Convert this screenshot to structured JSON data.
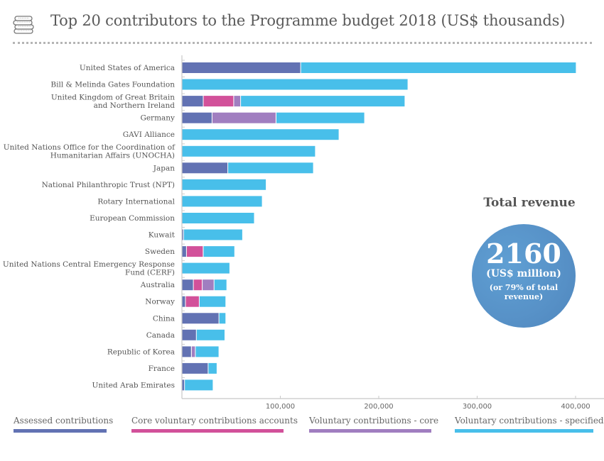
{
  "header": {
    "icon": "coins-stack-icon",
    "title": "Top 20 contributors to the Programme budget 2018 (US$ thousands)"
  },
  "revenue_panel": {
    "title": "Total revenue",
    "value": "2160",
    "unit": "(US$ million)",
    "note": "(or 79% of total revenue)"
  },
  "colors": {
    "assessed": "#6272b3",
    "core_voluntary_accounts": "#d2519a",
    "voluntary_core": "#a07ec0",
    "voluntary_specified": "#48bfea",
    "revenue_circle": "#5791c7"
  },
  "chart_data": {
    "type": "bar",
    "orientation": "horizontal",
    "stacked": true,
    "title": "Top 20 contributors to the Programme budget 2018 (US$ thousands)",
    "xlabel": "",
    "ylabel": "",
    "xlim": [
      0,
      420000
    ],
    "xticks": [
      100000,
      200000,
      300000,
      400000
    ],
    "xtick_labels": [
      "100,000",
      "200,000",
      "300,000",
      "400,000"
    ],
    "grid": false,
    "legend_position": "bottom",
    "categories": [
      "United States of America",
      "Bill & Melinda Gates Foundation",
      "United Kingdom of Great Britain and Northern Ireland",
      "Germany",
      "GAVI Alliance",
      "United Nations Office for the Coordination of Humanitarian Affairs (UNOCHA)",
      "Japan",
      "National Philanthropic Trust (NPT)",
      "Rotary International",
      "European Commission",
      "Kuwait",
      "Sweden",
      "United Nations Central Emergency Response Fund (CERF)",
      "Australia",
      "Norway",
      "China",
      "Canada",
      "Republic of Korea",
      "France",
      "United Arab Emirates"
    ],
    "category_label_lines": [
      [
        "United States of America"
      ],
      [
        "Bill & Melinda Gates Foundation"
      ],
      [
        "United Kingdom of Great Britain",
        "and Northern Ireland"
      ],
      [
        "Germany"
      ],
      [
        "GAVI Alliance"
      ],
      [
        "United Nations Office for the Coordination of",
        "Humanitarian Affairs (UNOCHA)"
      ],
      [
        "Japan"
      ],
      [
        "National Philanthropic Trust (NPT)"
      ],
      [
        "Rotary International"
      ],
      [
        "European Commission"
      ],
      [
        "Kuwait"
      ],
      [
        "Sweden"
      ],
      [
        "United Nations Central Emergency Response",
        "Fund (CERF)"
      ],
      [
        "Australia"
      ],
      [
        "Norway"
      ],
      [
        "China"
      ],
      [
        "Canada"
      ],
      [
        "Republic of Korea"
      ],
      [
        "France"
      ],
      [
        "United Arab Emirates"
      ]
    ],
    "series": [
      {
        "name": "Assessed contributions",
        "key": "assessed",
        "values": [
          121000,
          0,
          22000,
          31000,
          0,
          0,
          47000,
          0,
          0,
          0,
          2000,
          5000,
          0,
          12000,
          4000,
          38000,
          15000,
          10000,
          27000,
          3000
        ]
      },
      {
        "name": "Core voluntary contributions accounts",
        "key": "core_voluntary_accounts",
        "values": [
          0,
          0,
          31000,
          0,
          0,
          0,
          0,
          0,
          0,
          0,
          0,
          17000,
          0,
          9000,
          14000,
          0,
          0,
          0,
          0,
          0
        ]
      },
      {
        "name": "Voluntary contributions - core",
        "key": "voluntary_core",
        "values": [
          0,
          0,
          7000,
          65000,
          0,
          0,
          0,
          0,
          0,
          0,
          0,
          0,
          0,
          12000,
          0,
          0,
          0,
          4000,
          0,
          0
        ]
      },
      {
        "name": "Voluntary contributions - specified",
        "key": "voluntary_specified",
        "values": [
          280000,
          230000,
          167000,
          90000,
          160000,
          136000,
          87000,
          86000,
          82000,
          74000,
          60000,
          32000,
          49000,
          13000,
          27000,
          7000,
          29000,
          24000,
          9000,
          29000
        ]
      }
    ]
  },
  "legend": [
    {
      "label": "Assessed contributions",
      "key": "assessed"
    },
    {
      "label": "Core voluntary contributions accounts",
      "key": "core_voluntary_accounts"
    },
    {
      "label": "Voluntary contributions - core",
      "key": "voluntary_core"
    },
    {
      "label": "Voluntary contributions - specified",
      "key": "voluntary_specified"
    }
  ]
}
